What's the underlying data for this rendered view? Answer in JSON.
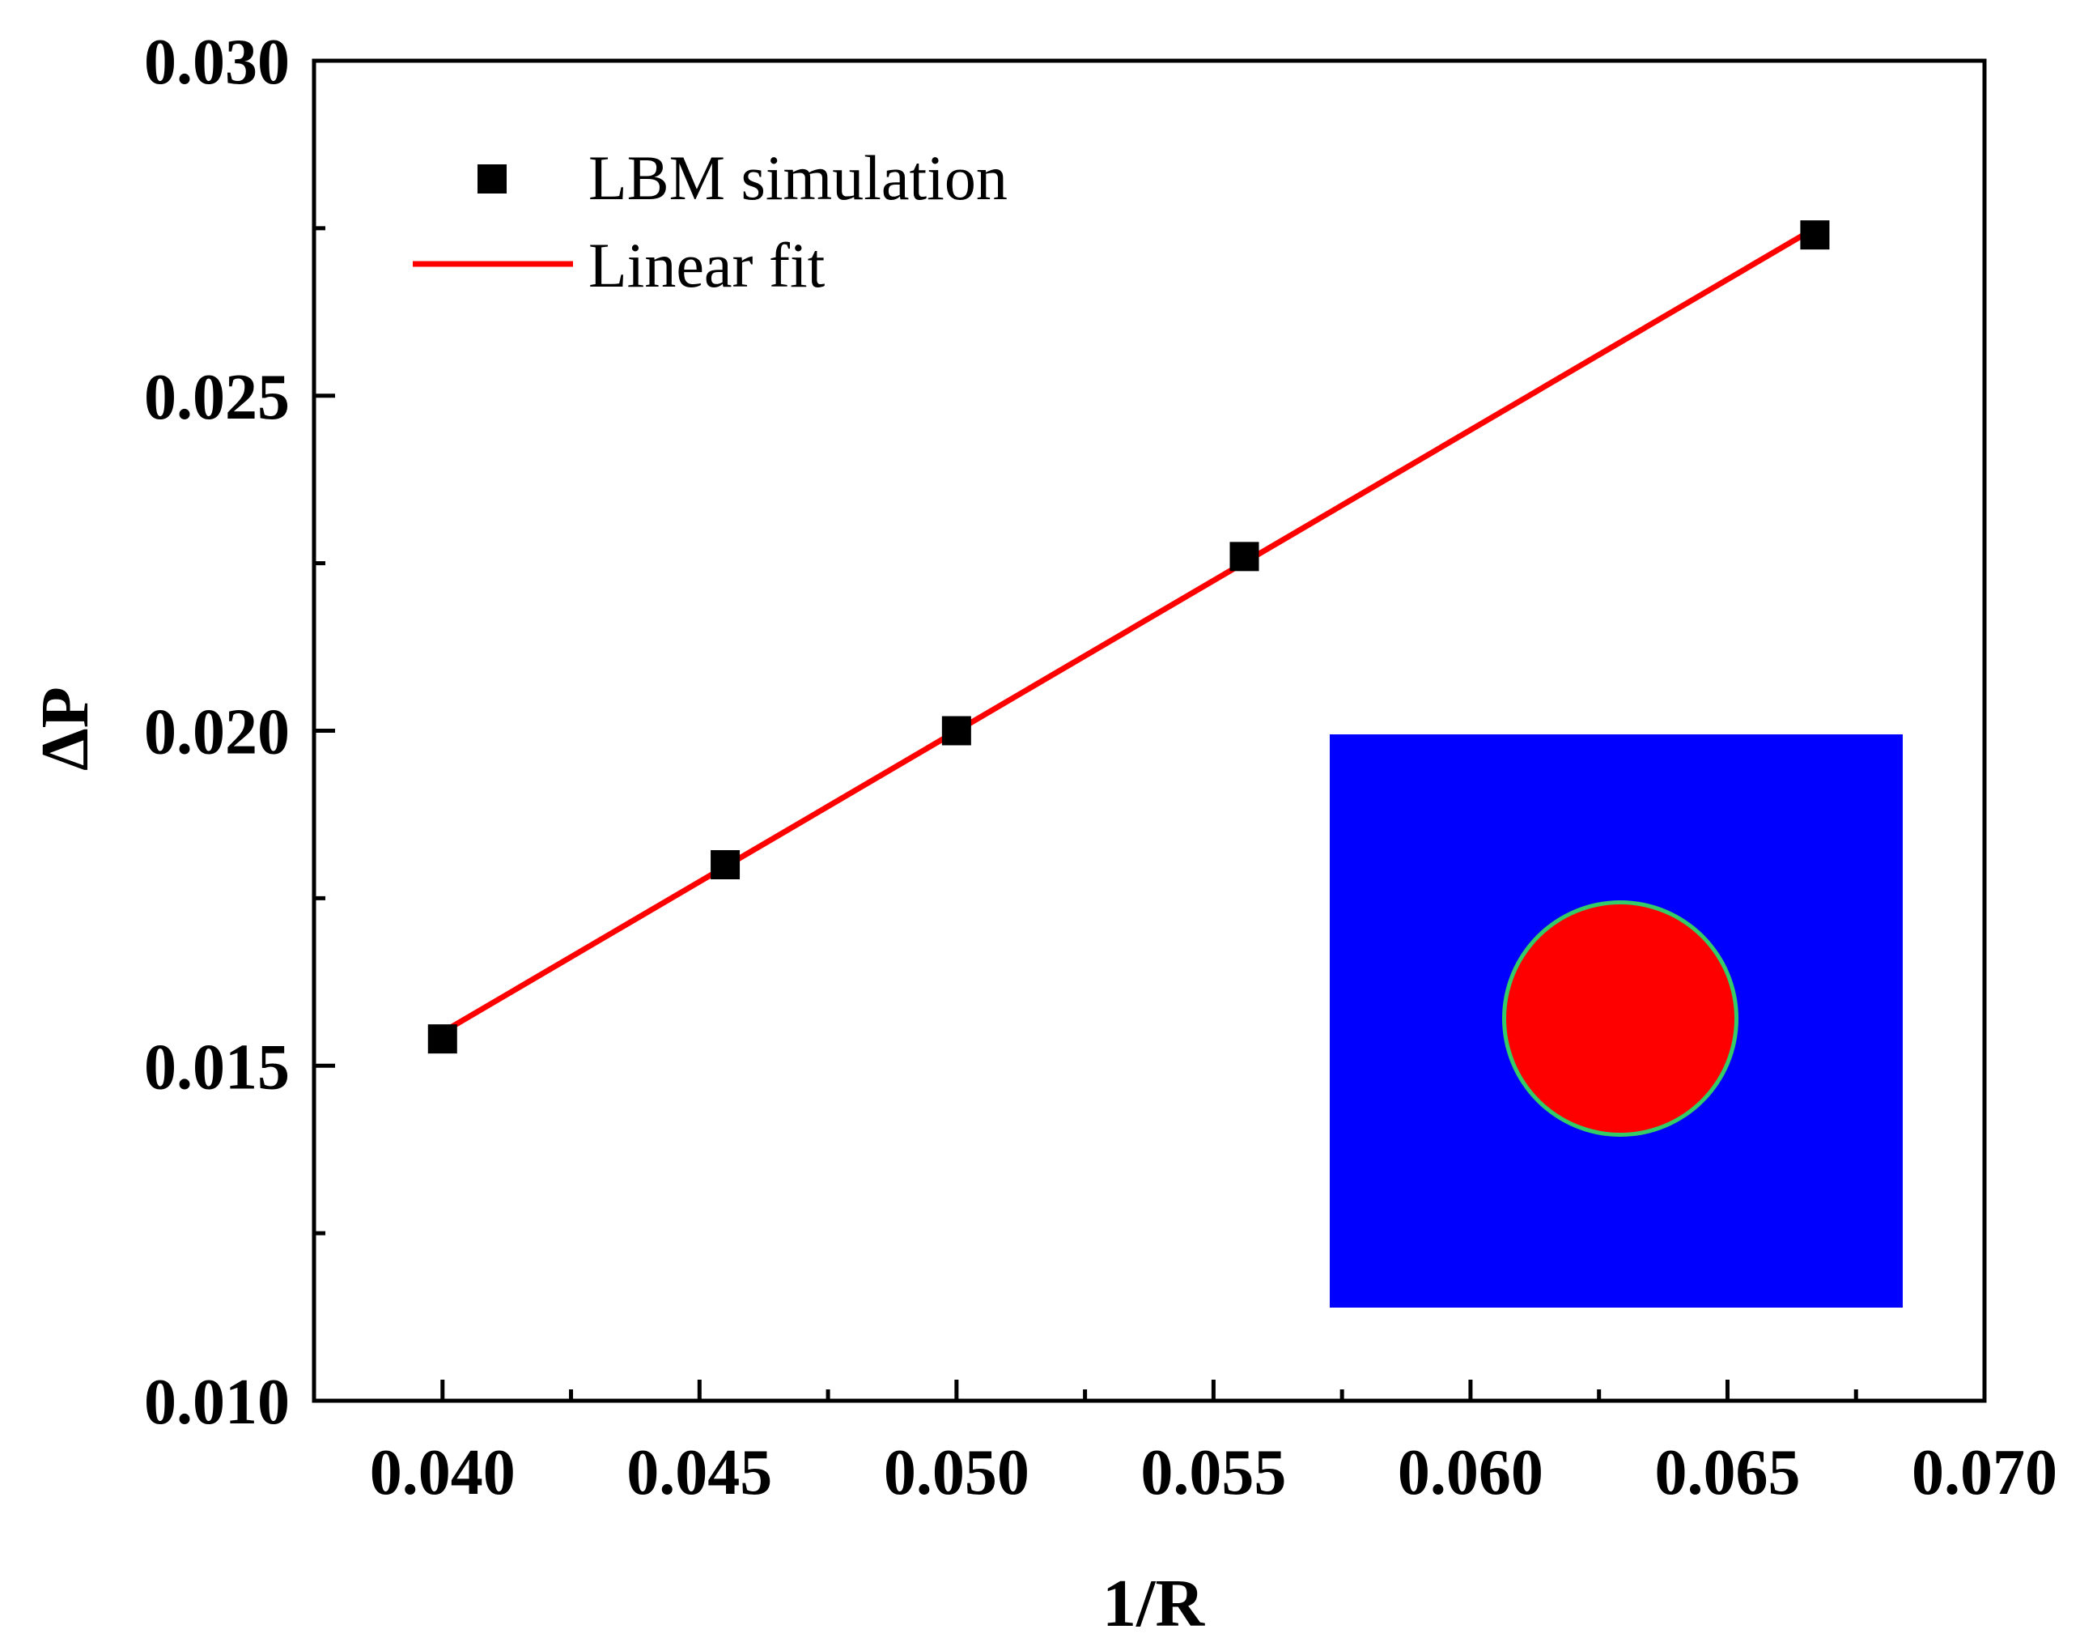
{
  "chart_data": {
    "type": "scatter",
    "title": "",
    "xlabel": "1/R",
    "ylabel": "ΔP",
    "xlim": [
      0.0375,
      0.07
    ],
    "ylim": [
      0.01,
      0.03
    ],
    "grid": false,
    "xticks": [
      "0.040",
      "0.045",
      "0.050",
      "0.055",
      "0.060",
      "0.065",
      "0.070"
    ],
    "yticks": [
      "0.010",
      "0.015",
      "0.020",
      "0.025",
      "0.030"
    ],
    "legend_position": "top-left",
    "series": [
      {
        "name": "LBM simulation",
        "kind": "scatter",
        "marker": "square",
        "color": "#000000",
        "x": [
          0.04,
          0.0455,
          0.05,
          0.0556,
          0.0667
        ],
        "y": [
          0.0154,
          0.018,
          0.02,
          0.0226,
          0.0274
        ]
      },
      {
        "name": "Linear fit",
        "kind": "line",
        "color": "#ff0000",
        "x": [
          0.04,
          0.0667
        ],
        "y": [
          0.0155,
          0.0275
        ]
      }
    ],
    "inset": {
      "description": "droplet field",
      "background_color": "#0000ff",
      "droplet_color": "#ff0000",
      "interface_color": "#33cc66"
    }
  }
}
